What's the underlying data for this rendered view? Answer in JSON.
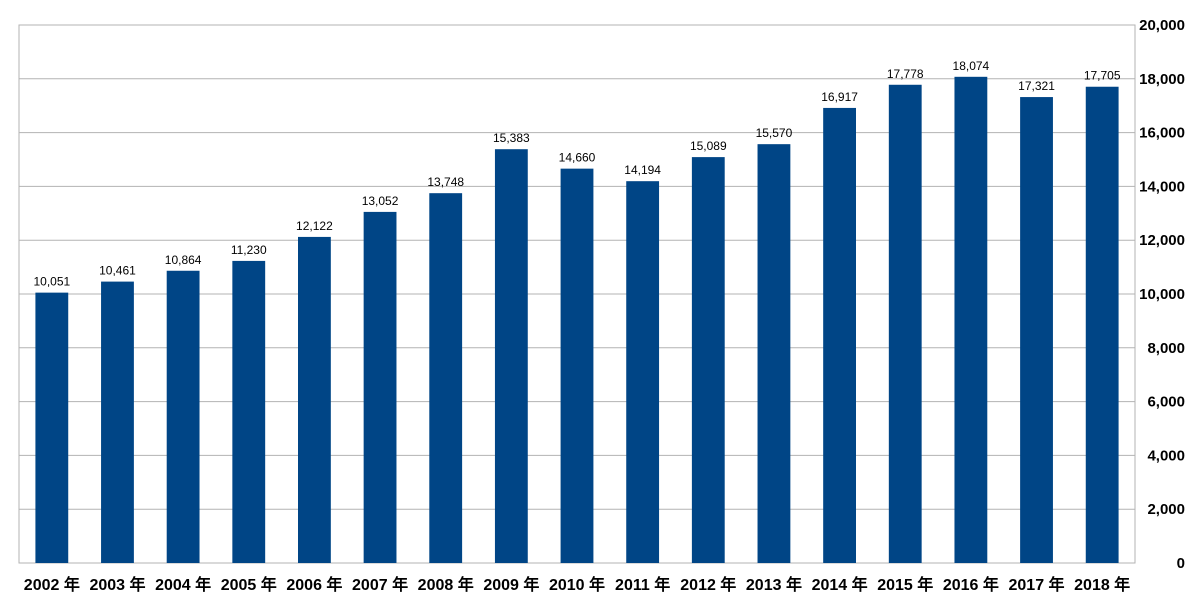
{
  "chart_data": {
    "type": "bar",
    "categories": [
      "2002 年",
      "2003 年",
      "2004 年",
      "2005 年",
      "2006 年",
      "2007 年",
      "2008 年",
      "2009 年",
      "2010 年",
      "2011 年",
      "2012 年",
      "2013 年",
      "2014 年",
      "2015 年",
      "2016 年",
      "2017 年",
      "2018 年"
    ],
    "values": [
      10051,
      10461,
      10864,
      11230,
      12122,
      13052,
      13748,
      15383,
      14660,
      14194,
      15089,
      15570,
      16917,
      17778,
      18074,
      17321,
      17705
    ],
    "data_labels": [
      "10,051",
      "10,461",
      "10,864",
      "11,230",
      "12,122",
      "13,052",
      "13,748",
      "15,383",
      "14,660",
      "14,194",
      "15,089",
      "15,570",
      "16,917",
      "17,778",
      "18,074",
      "17,321",
      "17,705"
    ],
    "y_ticks": [
      0,
      2000,
      4000,
      6000,
      8000,
      10000,
      12000,
      14000,
      16000,
      18000,
      20000
    ],
    "y_tick_labels": [
      "0",
      "2,000",
      "4,000",
      "6,000",
      "8,000",
      "10,000",
      "12,000",
      "14,000",
      "16,000",
      "18,000",
      "20,000"
    ],
    "ylim": [
      0,
      20000
    ],
    "y_axis_side": "right",
    "grid": true,
    "title": "",
    "xlabel": "",
    "ylabel": "",
    "bar_color": "#004586"
  }
}
